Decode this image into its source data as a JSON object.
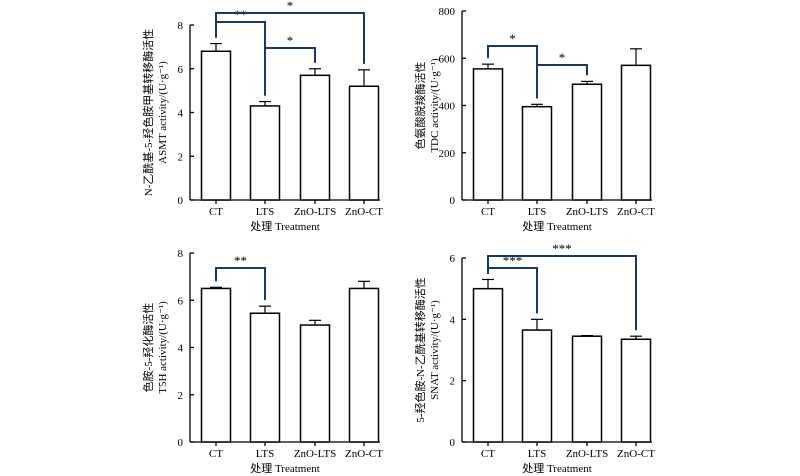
{
  "chart_data": [
    {
      "type": "bar",
      "panel": "ASMT",
      "categories": [
        "CT",
        "LTS",
        "ZnO-LTS",
        "ZnO-CT"
      ],
      "values": [
        6.8,
        4.3,
        5.7,
        5.2
      ],
      "errors": [
        0.35,
        0.2,
        0.3,
        0.75
      ],
      "ylim": [
        0,
        8
      ],
      "yticks": [
        0,
        2,
        4,
        6,
        8
      ],
      "xlabel": "处理 Treatment",
      "ylabel_line1": "N-乙酰基-5-羟色胺甲基转移酶活性",
      "ylabel_line2": "ASMT activity/(U·g⁻¹)",
      "significance": [
        {
          "from": 0,
          "to": 1,
          "label": "**"
        },
        {
          "from": 1,
          "to": 2,
          "label": "*"
        },
        {
          "from": 0,
          "to": 3,
          "label": "*"
        }
      ]
    },
    {
      "type": "bar",
      "panel": "TDC",
      "categories": [
        "CT",
        "LTS",
        "ZnO-LTS",
        "ZnO-CT"
      ],
      "values": [
        555,
        395,
        490,
        570
      ],
      "errors": [
        20,
        10,
        12,
        70
      ],
      "ylim": [
        0,
        800
      ],
      "yticks": [
        0,
        200,
        400,
        600,
        800
      ],
      "xlabel": "处理 Treatment",
      "ylabel_line1": "色氨酸脱羧酶活性",
      "ylabel_line2": "TDC activity/(U·g⁻¹)",
      "significance": [
        {
          "from": 0,
          "to": 1,
          "label": "*"
        },
        {
          "from": 1,
          "to": 2,
          "label": "*"
        }
      ]
    },
    {
      "type": "bar",
      "panel": "T5H",
      "categories": [
        "CT",
        "LTS",
        "ZnO-LTS",
        "ZnO-CT"
      ],
      "values": [
        6.5,
        5.45,
        4.95,
        6.5
      ],
      "errors": [
        0.05,
        0.3,
        0.2,
        0.3
      ],
      "ylim": [
        0,
        8
      ],
      "yticks": [
        0,
        2,
        4,
        6,
        8
      ],
      "xlabel": "处理 Treatment",
      "ylabel_line1": "色胺-5-羟化酶活性",
      "ylabel_line2": "T5H activity/(U·g⁻¹)",
      "significance": [
        {
          "from": 0,
          "to": 1,
          "label": "**"
        }
      ]
    },
    {
      "type": "bar",
      "panel": "SNAT",
      "categories": [
        "CT",
        "LTS",
        "ZnO-LTS",
        "ZnO-CT"
      ],
      "values": [
        5.0,
        3.65,
        3.45,
        3.35
      ],
      "errors": [
        0.3,
        0.35,
        0.02,
        0.1
      ],
      "ylim": [
        0,
        6
      ],
      "yticks": [
        0,
        2,
        4,
        6
      ],
      "xlabel": "处理 Treatment",
      "ylabel_line1": "5-羟色胺-N-乙酰基转移酶活性",
      "ylabel_line2": "SNAT activity/(U·g⁻¹)",
      "significance": [
        {
          "from": 0,
          "to": 1,
          "label": "***"
        },
        {
          "from": 0,
          "to": 3,
          "label": "***"
        }
      ]
    }
  ]
}
